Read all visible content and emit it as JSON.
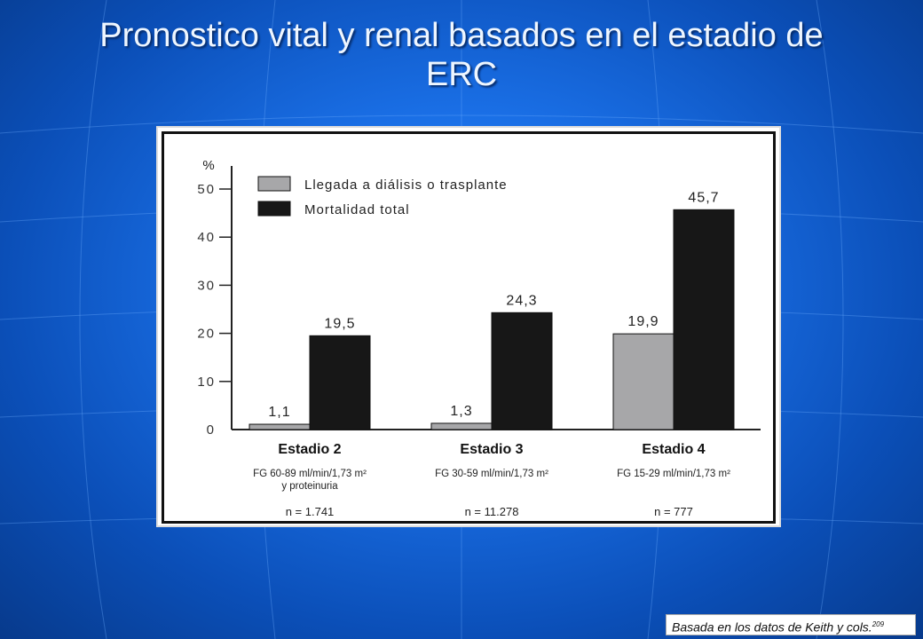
{
  "slide": {
    "title_line1": "Pronostico vital y renal basados en el estadio de",
    "title_line2": "ERC",
    "source_note": "Basada en los datos de Keith y cols.",
    "source_ref": "209"
  },
  "colors": {
    "series_dialysis": "#a7a7a9",
    "series_mortality": "#171717"
  },
  "chart_data": {
    "type": "bar",
    "ylabel": "%",
    "ylim": [
      0,
      50
    ],
    "yticks": [
      "0",
      "10",
      "20",
      "30",
      "40",
      "50"
    ],
    "categories": [
      "Estadio 2",
      "Estadio 3",
      "Estadio 4"
    ],
    "category_notes": [
      [
        "FG 60-89 ml/min/1,73 m²",
        "y proteinuria"
      ],
      [
        "FG 30-59 ml/min/1,73 m²"
      ],
      [
        "FG 15-29 ml/min/1,73 m²"
      ]
    ],
    "category_n": [
      "n = 1.741",
      "n = 11.278",
      "n = 777"
    ],
    "series": [
      {
        "name": "Llegada a diálisis o trasplante",
        "values": [
          1.1,
          1.3,
          19.9
        ],
        "labels": [
          "1,1",
          "1,3",
          "19,9"
        ]
      },
      {
        "name": "Mortalidad total",
        "values": [
          19.5,
          24.3,
          45.7
        ],
        "labels": [
          "19,5",
          "24,3",
          "45,7"
        ]
      }
    ],
    "legend_position": "top-left",
    "grid": false
  }
}
